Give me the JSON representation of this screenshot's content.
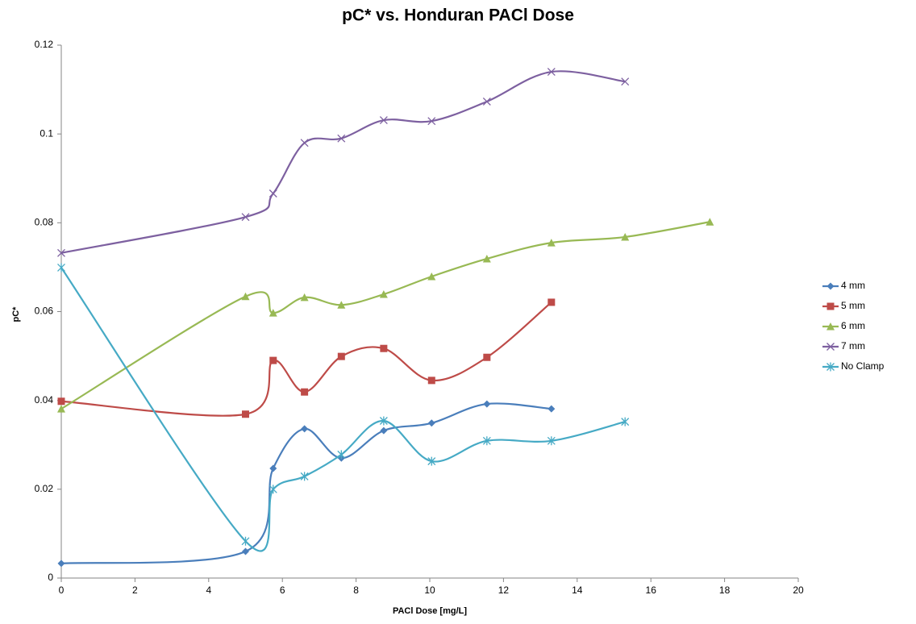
{
  "chart_data": {
    "type": "line",
    "title": "pC* vs. Honduran PACl Dose",
    "x_label": "PACl Dose [mg/L]",
    "y_label": "pC*",
    "xlim": [
      0,
      20
    ],
    "xticks": [
      0,
      2,
      4,
      6,
      8,
      10,
      12,
      14,
      16,
      18,
      20
    ],
    "ylim": [
      0,
      0.12
    ],
    "yticks": [
      0,
      0.02,
      0.04,
      0.06,
      0.08,
      0.1,
      0.12
    ],
    "grid": false,
    "smooth": true,
    "legend": "right",
    "series": [
      {
        "name": "4 mm",
        "color": "#4a7ebb",
        "marker": "diamond",
        "x": [
          0,
          5,
          5.75,
          6.6,
          7.6,
          8.75,
          10.05,
          11.55,
          13.3
        ],
        "values": [
          0.0033,
          0.006,
          0.0247,
          0.0336,
          0.027,
          0.0332,
          0.0349,
          0.0392,
          0.0381
        ]
      },
      {
        "name": "5 mm",
        "color": "#be4b48",
        "marker": "square",
        "x": [
          0,
          5,
          5.75,
          6.6,
          7.6,
          8.75,
          10.05,
          11.55,
          13.3
        ],
        "values": [
          0.0398,
          0.0369,
          0.049,
          0.0419,
          0.0499,
          0.0517,
          0.0445,
          0.0497,
          0.0621
        ]
      },
      {
        "name": "6 mm",
        "color": "#98b954",
        "marker": "triangle",
        "x": [
          0,
          5,
          5.75,
          6.6,
          7.6,
          8.75,
          10.05,
          11.55,
          13.3,
          15.3,
          17.6
        ],
        "values": [
          0.0381,
          0.0634,
          0.0597,
          0.0632,
          0.0615,
          0.0639,
          0.0679,
          0.0719,
          0.0755,
          0.0768,
          0.0802
        ]
      },
      {
        "name": "7 mm",
        "color": "#7d60a0",
        "marker": "x",
        "x": [
          0,
          5,
          5.75,
          6.6,
          7.6,
          8.75,
          10.05,
          11.55,
          13.3,
          15.3
        ],
        "values": [
          0.0732,
          0.0813,
          0.0866,
          0.098,
          0.099,
          0.1031,
          0.1029,
          0.1073,
          0.114,
          0.1118
        ]
      },
      {
        "name": "No Clamp",
        "color": "#46aac5",
        "marker": "star",
        "x": [
          0,
          5,
          5.75,
          6.6,
          7.6,
          8.75,
          10.05,
          11.55,
          13.3,
          15.3
        ],
        "values": [
          0.0699,
          0.0083,
          0.02,
          0.0229,
          0.0278,
          0.0354,
          0.0263,
          0.0309,
          0.0309,
          0.0352
        ]
      }
    ]
  }
}
